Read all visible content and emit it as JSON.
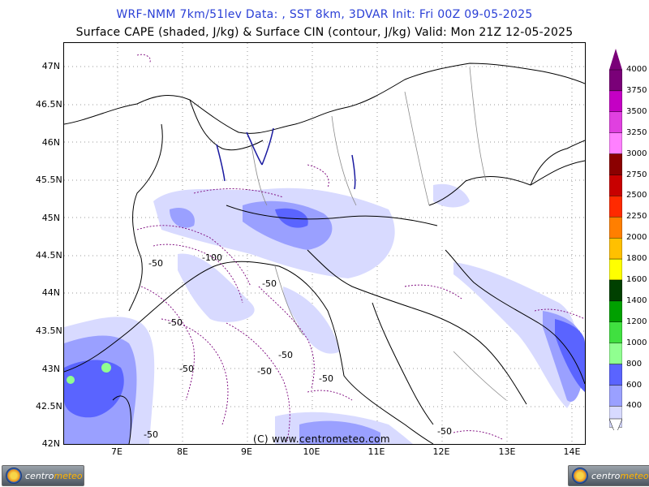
{
  "header": {
    "line1": "WRF-NMM 7km/51lev   Data: , SST 8km, 3DVAR   Init: Fri 00Z 09-05-2025",
    "line2": "Surface CAPE (shaded, J/kg) & Surface CIN (contour, J/kg)   Valid: Mon 21Z 12-05-2025"
  },
  "axes": {
    "lat_labels": [
      "47N",
      "46.5N",
      "46N",
      "45.5N",
      "45N",
      "44.5N",
      "44N",
      "43.5N",
      "43N",
      "42.5N",
      "42N"
    ],
    "lon_labels": [
      "7E",
      "8E",
      "9E",
      "10E",
      "11E",
      "12E",
      "13E",
      "14E"
    ]
  },
  "contour_labels": [
    "-50",
    "-50",
    "-50",
    "-50",
    "-50",
    "-50",
    "-50",
    "-50",
    "-100",
    "-50"
  ],
  "copyright": "(C) www.centrometeo.com",
  "colorbar": {
    "levels": [
      "4000",
      "3750",
      "3500",
      "3250",
      "3000",
      "2750",
      "2500",
      "2250",
      "2000",
      "1800",
      "1600",
      "1400",
      "1200",
      "1000",
      "800",
      "600",
      "400"
    ],
    "colors": [
      "#7a0078",
      "#c400c4",
      "#e040e0",
      "#ff80ff",
      "#8b0000",
      "#c80000",
      "#ff2a00",
      "#ff7f00",
      "#ffc000",
      "#ffff00",
      "#004000",
      "#00a000",
      "#40e040",
      "#90ff90",
      "#5a64ff",
      "#9aa0ff",
      "#d8daff"
    ]
  },
  "logos": {
    "left_text_a": "centro",
    "left_text_b": "meteo",
    "right_text_a": "centro",
    "right_text_b": "meteo"
  }
}
